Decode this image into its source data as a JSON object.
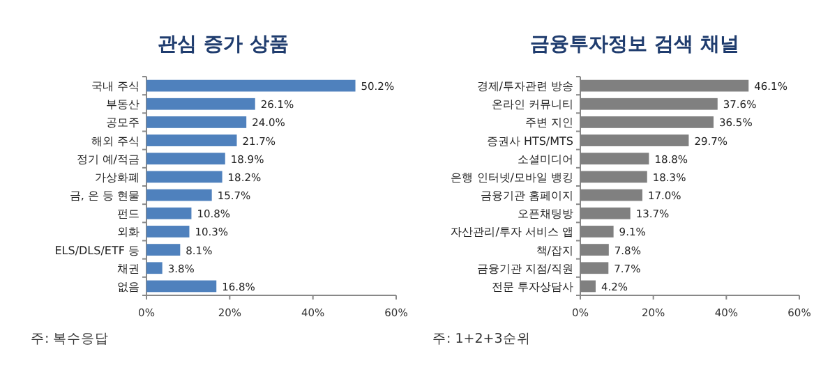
{
  "chart_data": [
    {
      "type": "bar",
      "orientation": "horizontal",
      "title": "관심 증가 상품",
      "categories": [
        "국내 주식",
        "부동산",
        "공모주",
        "해외 주식",
        "정기 예/적금",
        "가상화폐",
        "금, 은 등 현물",
        "펀드",
        "외화",
        "ELS/DLS/ETF 등",
        "채권",
        "없음"
      ],
      "values": [
        50.2,
        26.1,
        24.0,
        21.7,
        18.9,
        18.2,
        15.7,
        10.8,
        10.3,
        8.1,
        3.8,
        16.8
      ],
      "value_labels": [
        "50.2%",
        "26.1%",
        "24.0%",
        "21.7%",
        "18.9%",
        "18.2%",
        "15.7%",
        "10.8%",
        "10.3%",
        "8.1%",
        "3.8%",
        "16.8%"
      ],
      "color": "#4f81bd",
      "xlim": [
        0,
        60
      ],
      "xticks": [
        {
          "value": 0,
          "label": "0%"
        },
        {
          "value": 20,
          "label": "20%"
        },
        {
          "value": 40,
          "label": "40%"
        },
        {
          "value": 60,
          "label": "60%"
        }
      ],
      "grid": false,
      "annotations": [
        "주: 복수응답"
      ]
    },
    {
      "type": "bar",
      "orientation": "horizontal",
      "title": "금융투자정보 검색 채널",
      "categories": [
        "경제/투자관련 방송",
        "온라인 커뮤니티",
        "주변 지인",
        "증권사 HTS/MTS",
        "소셜미디어",
        "은행 인터넷/모바일 뱅킹",
        "금융기관 홈페이지",
        "오픈채팅방",
        "자산관리/투자 서비스 앱",
        "책/잡지",
        "금융기관 지점/직원",
        "전문 투자상담사"
      ],
      "values": [
        46.1,
        37.6,
        36.5,
        29.7,
        18.8,
        18.3,
        17.0,
        13.7,
        9.1,
        7.8,
        7.7,
        4.2
      ],
      "value_labels": [
        "46.1%",
        "37.6%",
        "36.5%",
        "29.7%",
        "18.8%",
        "18.3%",
        "17.0%",
        "13.7%",
        "9.1%",
        "7.8%",
        "7.7%",
        "4.2%"
      ],
      "color": "#808080",
      "xlim": [
        0,
        60
      ],
      "xticks": [
        {
          "value": 0,
          "label": "0%"
        },
        {
          "value": 20,
          "label": "20%"
        },
        {
          "value": 40,
          "label": "40%"
        },
        {
          "value": 60,
          "label": "60%"
        }
      ],
      "grid": false,
      "annotations": [
        "주: 1+2+3순위"
      ]
    }
  ]
}
